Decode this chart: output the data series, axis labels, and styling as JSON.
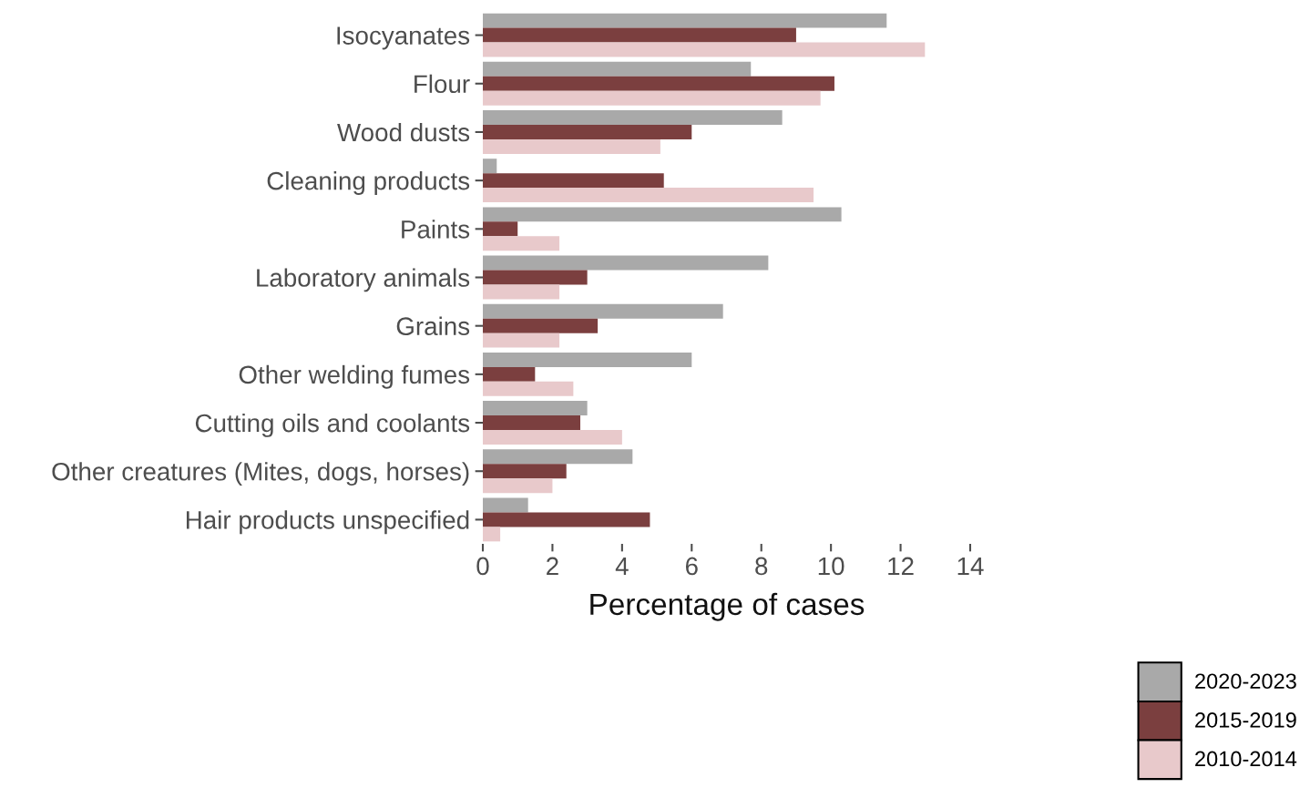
{
  "chart_data": {
    "type": "bar",
    "orientation": "horizontal",
    "xlabel": "Percentage of cases",
    "categories": [
      "Isocyanates",
      "Flour",
      "Wood dusts",
      "Cleaning products",
      "Paints",
      "Laboratory animals",
      "Grains",
      "Other welding fumes",
      "Cutting oils and coolants",
      "Other creatures (Mites, dogs, horses)",
      "Hair products unspecified"
    ],
    "series": [
      {
        "name": "2020-2023",
        "color": "#a9a9a9",
        "values": [
          11.6,
          7.7,
          8.6,
          0.4,
          10.3,
          8.2,
          6.9,
          6.0,
          3.0,
          4.3,
          1.3
        ]
      },
      {
        "name": "2015-2019",
        "color": "#7b3f3f",
        "values": [
          9.0,
          10.1,
          6.0,
          5.2,
          1.0,
          3.0,
          3.3,
          1.5,
          2.8,
          2.4,
          4.8
        ]
      },
      {
        "name": "2010-2014",
        "color": "#e8c9cb",
        "values": [
          12.7,
          9.7,
          5.1,
          9.5,
          2.2,
          2.2,
          2.2,
          2.6,
          4.0,
          2.0,
          0.5
        ]
      }
    ],
    "xlim": [
      0,
      14
    ],
    "xticks": [
      0,
      2,
      4,
      6,
      8,
      10,
      12,
      14
    ],
    "grid": false,
    "legend": "bottom right"
  }
}
